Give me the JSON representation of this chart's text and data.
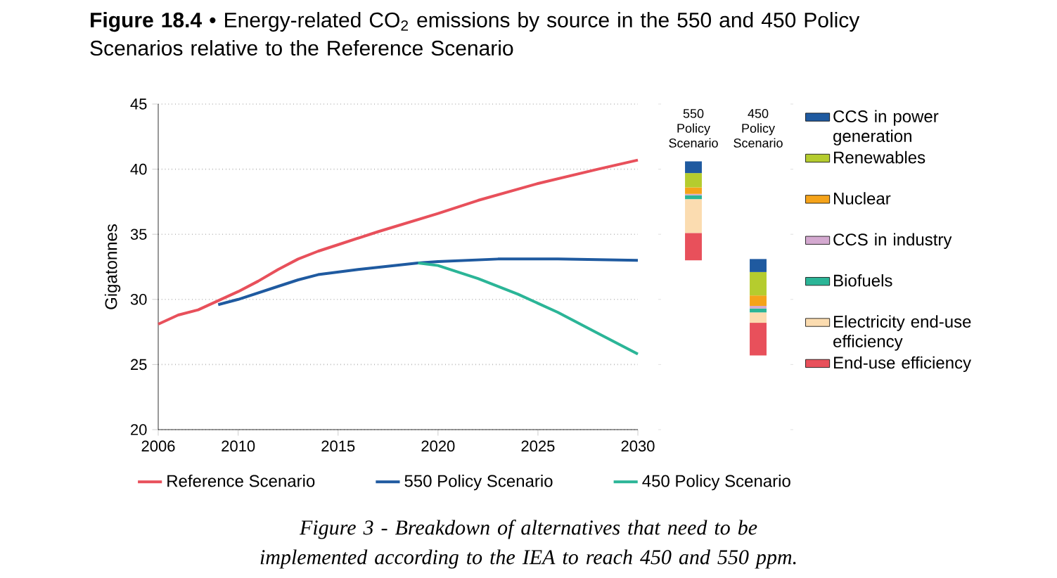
{
  "chart_data": [
    {
      "type": "line",
      "title": "**Figure 18.4** • Energy-related CO$_{2}$ emissions by source in the 550 and 450 Policy Scenarios relative to the Reference Scenario",
      "ylabel": "Gigatonnes",
      "xlim": [
        2006,
        2030
      ],
      "xticks": [
        2006,
        2010,
        2015,
        2020,
        2025,
        2030
      ],
      "ylim": [
        20,
        45
      ],
      "yticks": [
        20,
        25,
        30,
        35,
        40,
        45
      ],
      "grid": "y",
      "legend": "bottom",
      "marker": "none",
      "line_style": "solid",
      "annotations": [
        "Figure 3 - Breakdown of alternatives that need to be implemented according to the IEA to reach 450 and 550 ppm."
      ],
      "series": [
        {
          "name": "Reference Scenario",
          "color": "#e8505b",
          "x": [
            2006,
            2007,
            2008,
            2009,
            2010,
            2011,
            2012,
            2013,
            2014,
            2015,
            2017,
            2020,
            2022,
            2025,
            2028,
            2030
          ],
          "values": [
            28.1,
            28.8,
            29.2,
            29.9,
            30.6,
            31.4,
            32.3,
            33.1,
            33.7,
            34.2,
            35.2,
            36.6,
            37.6,
            38.9,
            40.0,
            40.7
          ]
        },
        {
          "name": "550 Policy Scenario",
          "color": "#1f5aa0",
          "x": [
            2009,
            2010,
            2012,
            2013,
            2014,
            2016,
            2019,
            2020,
            2023,
            2026,
            2030
          ],
          "values": [
            29.6,
            30.0,
            31.0,
            31.5,
            31.9,
            32.3,
            32.8,
            32.9,
            33.1,
            33.1,
            33.0
          ]
        },
        {
          "name": "450 Policy Scenario",
          "color": "#2bb597",
          "x": [
            2019,
            2020,
            2022,
            2024,
            2026,
            2028,
            2030
          ],
          "values": [
            32.8,
            32.6,
            31.6,
            30.4,
            29.0,
            27.4,
            25.8
          ]
        }
      ]
    },
    {
      "type": "bar",
      "categories": [
        "550 Policy Scenario",
        "450 Policy Scenario"
      ],
      "ylim": [
        20,
        45
      ],
      "yticks": [
        20,
        25,
        30,
        35,
        40,
        45
      ],
      "tick_labels": "x",
      "legend": "right",
      "series": [
        {
          "name": "End-use efficiency",
          "color": "#e8505b",
          "base": [
            33.0,
            25.7
          ],
          "values": [
            2.1,
            2.5
          ]
        },
        {
          "name": "Electricity end-use efficiency",
          "color": "#fbdcb0",
          "base": [
            35.1,
            28.2
          ],
          "values": [
            2.6,
            0.8
          ]
        },
        {
          "name": "Biofuels",
          "color": "#2bb597",
          "base": [
            37.7,
            29.0
          ],
          "values": [
            0.3,
            0.3
          ]
        },
        {
          "name": "CCS in industry",
          "color": "#d4a9d0",
          "base": [
            38.0,
            29.3
          ],
          "values": [
            0.1,
            0.2
          ]
        },
        {
          "name": "Nuclear",
          "color": "#f5a31a",
          "base": [
            38.1,
            29.5
          ],
          "values": [
            0.5,
            0.8
          ]
        },
        {
          "name": "Renewables",
          "color": "#b5cc2e",
          "base": [
            38.6,
            30.3
          ],
          "values": [
            1.1,
            1.8
          ]
        },
        {
          "name": "CCS in power generation",
          "color": "#1f5aa0",
          "base": [
            39.7,
            32.1
          ],
          "values": [
            0.9,
            1.0
          ]
        }
      ]
    }
  ]
}
